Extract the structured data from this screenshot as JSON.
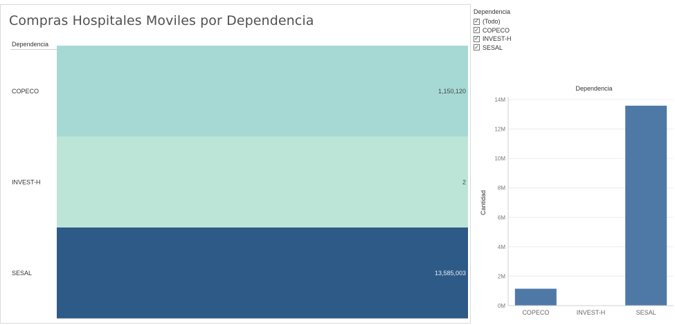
{
  "left_chart": {
    "title": "Compras Hospitales Moviles por Dependencia",
    "column_header": "Dependencia"
  },
  "filter": {
    "title": "Dependencia",
    "items": [
      {
        "label": "(Todo)",
        "checked": true
      },
      {
        "label": "COPECO",
        "checked": true
      },
      {
        "label": "INVEST-H",
        "checked": true
      },
      {
        "label": "SESAL",
        "checked": true
      }
    ]
  },
  "colors": {
    "copeco_cell": "#a7d9d4",
    "investh_cell": "#bce5d8",
    "sesal_cell": "#2e5a87",
    "bar": "#4e79a7"
  },
  "chart_data": [
    {
      "type": "table",
      "title": "Compras Hospitales Moviles por Dependencia",
      "categories": [
        "COPECO",
        "INVEST-H",
        "SESAL"
      ],
      "values": [
        1150120,
        2,
        13585003
      ],
      "labels": [
        "1,150,120",
        "2",
        "13,585,003"
      ]
    },
    {
      "type": "bar",
      "title": "Dependencia",
      "ylabel": "Cantidad",
      "categories": [
        "COPECO",
        "INVEST-H",
        "SESAL"
      ],
      "values": [
        1150120,
        2,
        13585003
      ],
      "ylim": [
        0,
        14000000
      ],
      "yticks": [
        0,
        2000000,
        4000000,
        6000000,
        8000000,
        10000000,
        12000000,
        14000000
      ],
      "ytick_labels": [
        "0M",
        "2M",
        "4M",
        "6M",
        "8M",
        "10M",
        "12M",
        "14M"
      ],
      "grid": true
    }
  ]
}
